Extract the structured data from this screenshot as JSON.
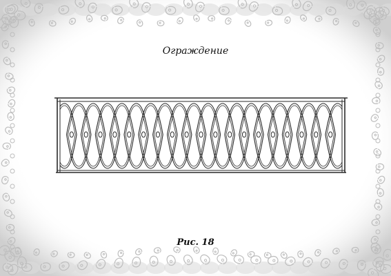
{
  "page": {
    "title": "Ограждение",
    "figure_caption": "Рис. 18"
  },
  "fence": {
    "loop_count": 20,
    "colors": {
      "line": "#2a2a2a",
      "ornament": "#bdbdbd",
      "shade": "#dcdcdc"
    }
  }
}
